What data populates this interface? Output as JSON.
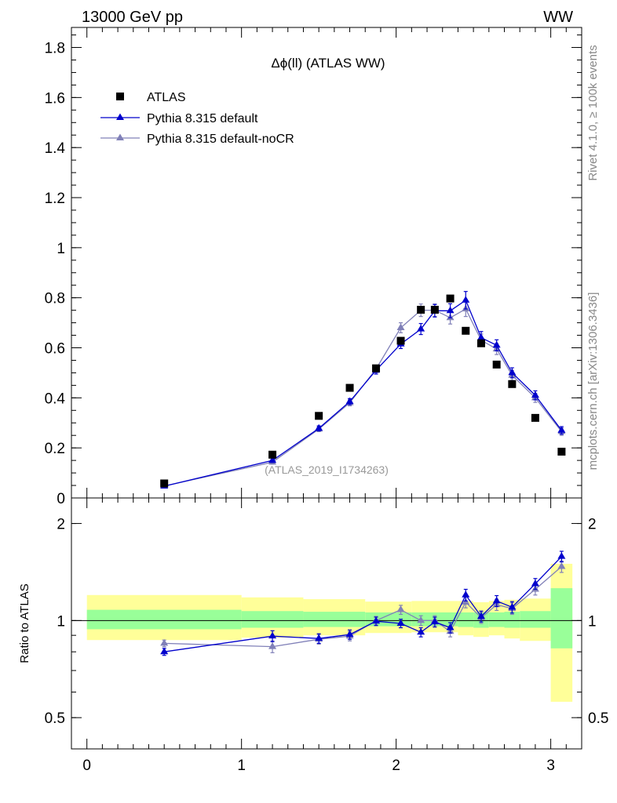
{
  "header": {
    "left": "13000 GeV pp",
    "right": "WW"
  },
  "side_labels": {
    "rivet": "Rivet 4.1.0, ≥ 100k events",
    "mcplots": "mcplots.cern.ch [arXiv:1306.3436]"
  },
  "colors": {
    "data": "#000000",
    "default": "#0000cc",
    "nocr": "#8080b8",
    "band_inner": "#99ff99",
    "band_outer": "#ffff99"
  },
  "chart_data": [
    {
      "type": "scatter",
      "title": "Δϕ(ll) (ATLAS WW)",
      "watermark": "(ATLAS_2019_I1734263)",
      "xlim": [
        -0.1,
        3.2
      ],
      "ylim": [
        0,
        1.88
      ],
      "yticks": [
        0,
        0.2,
        0.4,
        0.6,
        0.8,
        1,
        1.2,
        1.4,
        1.6,
        1.8
      ],
      "ytick_labels": [
        "0",
        "0.2",
        "0.4",
        "0.6",
        "0.8",
        "1",
        "1.2",
        "1.4",
        "1.6",
        "1.8"
      ],
      "legend_position": "top-left",
      "series": [
        {
          "name": "ATLAS",
          "marker": "square",
          "x": [
            0.5,
            1.2,
            1.5,
            1.7,
            1.87,
            2.03,
            2.16,
            2.25,
            2.35,
            2.45,
            2.55,
            2.65,
            2.75,
            2.9,
            3.07
          ],
          "values": [
            0.058,
            0.173,
            0.328,
            0.44,
            0.518,
            0.628,
            0.752,
            0.752,
            0.797,
            0.668,
            0.618,
            0.533,
            0.455,
            0.32,
            0.185
          ]
        },
        {
          "name": "Pythia 8.315 default",
          "marker": "triangle",
          "x": [
            0.5,
            1.2,
            1.5,
            1.7,
            1.87,
            2.03,
            2.16,
            2.25,
            2.35,
            2.45,
            2.55,
            2.65,
            2.75,
            2.9,
            3.07
          ],
          "values": [
            0.047,
            0.15,
            0.278,
            0.385,
            0.51,
            0.615,
            0.675,
            0.748,
            0.748,
            0.79,
            0.64,
            0.61,
            0.5,
            0.41,
            0.27
          ],
          "errors": [
            0.003,
            0.008,
            0.01,
            0.012,
            0.015,
            0.018,
            0.022,
            0.025,
            0.028,
            0.035,
            0.025,
            0.022,
            0.02,
            0.018,
            0.015
          ]
        },
        {
          "name": "Pythia 8.315 default-noCR",
          "marker": "triangle",
          "x": [
            0.5,
            1.2,
            1.5,
            1.7,
            1.87,
            2.03,
            2.16,
            2.25,
            2.35,
            2.45,
            2.55,
            2.65,
            2.75,
            2.9,
            3.07
          ],
          "values": [
            0.048,
            0.143,
            0.275,
            0.38,
            0.515,
            0.68,
            0.75,
            0.75,
            0.72,
            0.755,
            0.63,
            0.595,
            0.49,
            0.4,
            0.265
          ],
          "errors": [
            0.003,
            0.008,
            0.01,
            0.012,
            0.015,
            0.02,
            0.025,
            0.025,
            0.025,
            0.03,
            0.025,
            0.022,
            0.02,
            0.018,
            0.015
          ]
        }
      ]
    },
    {
      "type": "scatter",
      "ylabel": "Ratio to ATLAS",
      "yscale": "log",
      "ylim": [
        0.4,
        2.4
      ],
      "yticks": [
        0.5,
        1,
        2
      ],
      "ytick_labels": [
        "0.5",
        "1",
        "2"
      ],
      "xlim": [
        -0.1,
        3.2
      ],
      "xticks": [
        0,
        1,
        2,
        3
      ],
      "xtick_labels": [
        "0",
        "1",
        "2",
        "3"
      ],
      "reference_line": 1,
      "bands": {
        "x_edges": [
          0,
          1,
          1.4,
          1.8,
          2.1,
          2.4,
          2.5,
          2.6,
          2.7,
          2.8,
          3.0,
          3.14
        ],
        "inner_low": [
          0.94,
          0.95,
          0.955,
          0.96,
          0.96,
          0.955,
          0.95,
          0.955,
          0.95,
          0.95,
          0.82
        ],
        "inner_high": [
          1.08,
          1.07,
          1.065,
          1.06,
          1.06,
          1.06,
          1.06,
          1.06,
          1.065,
          1.07,
          1.26
        ],
        "outer_low": [
          0.87,
          0.885,
          0.9,
          0.915,
          0.92,
          0.9,
          0.89,
          0.9,
          0.88,
          0.865,
          0.56
        ],
        "outer_high": [
          1.2,
          1.18,
          1.165,
          1.145,
          1.15,
          1.15,
          1.14,
          1.15,
          1.16,
          1.17,
          1.5
        ]
      },
      "series": [
        {
          "name": "Pythia 8.315 default",
          "x": [
            0.5,
            1.2,
            1.5,
            1.7,
            1.87,
            2.03,
            2.16,
            2.25,
            2.35,
            2.45,
            2.55,
            2.65,
            2.75,
            2.9,
            3.07
          ],
          "values": [
            0.8,
            0.895,
            0.88,
            0.905,
            0.995,
            0.98,
            0.92,
            0.99,
            0.95,
            1.2,
            1.03,
            1.15,
            1.1,
            1.3,
            1.58
          ],
          "errors": [
            0.02,
            0.035,
            0.03,
            0.03,
            0.03,
            0.03,
            0.03,
            0.035,
            0.035,
            0.05,
            0.04,
            0.045,
            0.045,
            0.05,
            0.06
          ]
        },
        {
          "name": "Pythia 8.315 default-noCR",
          "x": [
            0.5,
            1.2,
            1.5,
            1.7,
            1.87,
            2.03,
            2.16,
            2.25,
            2.35,
            2.45,
            2.55,
            2.65,
            2.75,
            2.9,
            3.07
          ],
          "values": [
            0.85,
            0.83,
            0.875,
            0.895,
            1.0,
            1.08,
            1.0,
            1.0,
            0.925,
            1.14,
            1.02,
            1.12,
            1.09,
            1.25,
            1.47
          ],
          "errors": [
            0.02,
            0.035,
            0.03,
            0.03,
            0.03,
            0.035,
            0.035,
            0.035,
            0.035,
            0.045,
            0.04,
            0.045,
            0.045,
            0.05,
            0.06
          ]
        }
      ]
    }
  ]
}
